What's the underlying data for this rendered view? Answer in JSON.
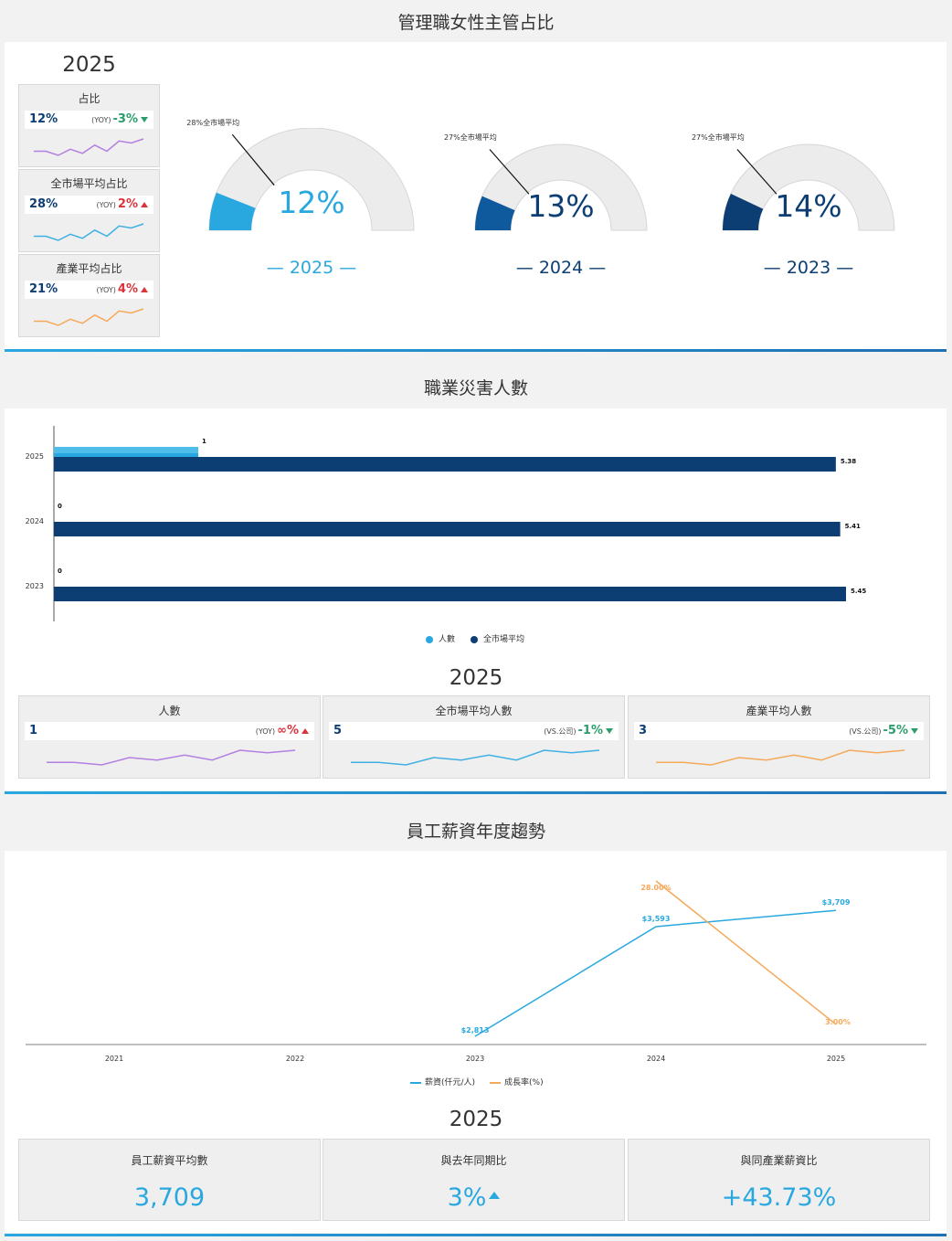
{
  "section1": {
    "title": "管理職女性主管占比",
    "year": "2025",
    "kpis": [
      {
        "title": "占比",
        "value": "12%",
        "cmp_label": "(YOY)",
        "cmp_value": "-3%",
        "dir": "down",
        "color": "#b37fe0",
        "spark": [
          5,
          5,
          3,
          6,
          4,
          8,
          5,
          10,
          9,
          11
        ]
      },
      {
        "title": "全市場平均占比",
        "value": "28%",
        "cmp_label": "(YOY)",
        "cmp_value": "2%",
        "dir": "up",
        "color": "#3fb0e3",
        "spark": [
          5,
          5,
          3,
          6,
          4,
          8,
          5,
          10,
          9,
          11
        ]
      },
      {
        "title": "產業平均占比",
        "value": "21%",
        "cmp_label": "(YOY)",
        "cmp_value": "4%",
        "dir": "up",
        "color": "#f5a95b",
        "spark": [
          5,
          5,
          3,
          6,
          4,
          8,
          5,
          10,
          9,
          11
        ]
      }
    ],
    "gauges": [
      {
        "value": 12,
        "value_label": "12%",
        "market": 28,
        "market_label": "28%全市場平均",
        "year_label": "— 2025 —",
        "color": "#29a8e0",
        "text_color": "#29a8e0"
      },
      {
        "value": 13,
        "value_label": "13%",
        "market": 27,
        "market_label": "27%全市場平均",
        "year_label": "— 2024 —",
        "color": "#0f5a9c",
        "text_color": "#0d3e73"
      },
      {
        "value": 14,
        "value_label": "14%",
        "market": 27,
        "market_label": "27%全市場平均",
        "year_label": "— 2023 —",
        "color": "#0d3e73",
        "text_color": "#0d3e73"
      }
    ]
  },
  "section2": {
    "title": "職業災害人數",
    "year": "2025",
    "legend": [
      "人數",
      "全市場平均"
    ],
    "stats": [
      {
        "title": "人數",
        "value": "1",
        "cmp_label": "(YOY)",
        "cmp_value": "∞%",
        "dir": "up",
        "color": "#b37fe0",
        "spark": [
          4,
          4,
          3,
          6,
          5,
          7,
          5,
          9,
          8,
          9
        ]
      },
      {
        "title": "全市場平均人數",
        "value": "5",
        "cmp_label": "(VS.公司)",
        "cmp_value": "-1%",
        "dir": "down",
        "color": "#3fb0e3",
        "spark": [
          4,
          4,
          3,
          6,
          5,
          7,
          5,
          9,
          8,
          9
        ]
      },
      {
        "title": "產業平均人數",
        "value": "3",
        "cmp_label": "(VS.公司)",
        "cmp_value": "-5%",
        "dir": "down",
        "color": "#f5a95b",
        "spark": [
          4,
          4,
          3,
          6,
          5,
          7,
          5,
          9,
          8,
          9
        ]
      }
    ]
  },
  "section3": {
    "title": "員工薪資年度趨勢",
    "year": "2025",
    "legend": [
      "薪資(仟元/人)",
      "成長率(%)"
    ],
    "stats": [
      {
        "title": "員工薪資平均數",
        "value": "3,709"
      },
      {
        "title": "與去年同期比",
        "value": "3%"
      },
      {
        "title": "與同產業薪資比",
        "value": "+43.73%"
      }
    ]
  },
  "chart_data": [
    {
      "type": "gauge",
      "title": "管理職女性主管占比",
      "categories": [
        "2025",
        "2024",
        "2023"
      ],
      "series": [
        {
          "name": "占比",
          "values": [
            12,
            13,
            14
          ]
        },
        {
          "name": "全市場平均",
          "values": [
            28,
            27,
            27
          ]
        }
      ],
      "ylim": [
        0,
        100
      ]
    },
    {
      "type": "bar",
      "orientation": "horizontal",
      "title": "職業災害人數",
      "categories": [
        "2025",
        "2024",
        "2023"
      ],
      "series": [
        {
          "name": "人數",
          "values": [
            1,
            0,
            0
          ],
          "labels": [
            "1",
            "0",
            "0"
          ]
        },
        {
          "name": "全市場平均",
          "values": [
            5.38,
            5.41,
            5.45
          ],
          "labels": [
            "5.38",
            "5.41",
            "5.45"
          ]
        }
      ],
      "xlim": [
        0,
        5.6
      ],
      "legend": "bottom"
    },
    {
      "type": "line",
      "title": "員工薪資年度趨勢",
      "x": [
        "2021",
        "2022",
        "2023",
        "2024",
        "2025"
      ],
      "series": [
        {
          "name": "薪資(仟元/人)",
          "values": [
            null,
            null,
            2813,
            3593,
            3709
          ],
          "labels": [
            "",
            "",
            "$2,813",
            "$3,593",
            "$3,709"
          ]
        },
        {
          "name": "成長率(%)",
          "values": [
            null,
            null,
            null,
            28.0,
            3.0
          ],
          "labels": [
            "",
            "",
            "",
            "28.00%",
            "3.00%"
          ]
        }
      ],
      "legend": "bottom"
    }
  ]
}
